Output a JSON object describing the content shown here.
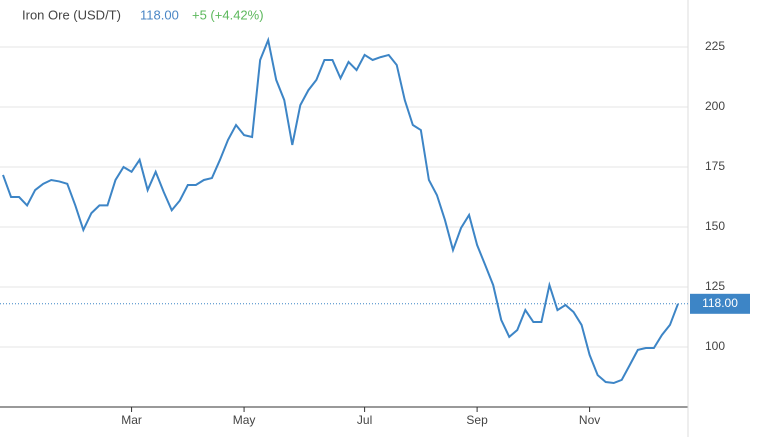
{
  "chart_data": {
    "type": "line",
    "title": "Iron Ore (USD/T)",
    "price": "118.00",
    "change": "+5 (+4.42%)",
    "color": "#3d85c6",
    "price_color": "#4a86c5",
    "change_color": "#5cb85c",
    "grid": true,
    "categories": [
      null,
      null,
      null,
      null,
      null,
      null,
      null,
      null,
      null,
      null,
      null,
      null,
      null,
      null,
      null,
      null,
      "Mar",
      null,
      null,
      null,
      null,
      null,
      null,
      null,
      null,
      null,
      null,
      null,
      null,
      null,
      "May",
      null,
      null,
      null,
      null,
      null,
      null,
      null,
      null,
      null,
      null,
      null,
      null,
      null,
      null,
      "Jul",
      null,
      null,
      null,
      null,
      null,
      null,
      null,
      null,
      null,
      null,
      null,
      null,
      null,
      "Sep",
      null,
      null,
      null,
      null,
      null,
      null,
      null,
      null,
      null,
      null,
      null,
      null,
      null,
      "Nov",
      null,
      null,
      null,
      null,
      null,
      null,
      null,
      null,
      null,
      null,
      null
    ],
    "values": [
      171.7,
      162.5,
      162.5,
      159,
      165.4,
      168,
      169.6,
      169,
      168,
      159,
      148.8,
      155.8,
      159,
      159,
      169.6,
      175,
      173,
      178,
      165.4,
      173,
      164.6,
      157,
      161,
      167.5,
      167.5,
      169.6,
      170.4,
      178,
      186.3,
      192.5,
      188.3,
      187.5,
      219.6,
      227.9,
      211.3,
      202.9,
      184.2,
      200.8,
      207,
      211.3,
      219.6,
      219.6,
      212,
      218.8,
      215.4,
      221.7,
      219.6,
      220.8,
      221.7,
      217.5,
      202.9,
      192.5,
      190.4,
      169.6,
      163.3,
      152.9,
      140.4,
      149.6,
      155,
      142.5,
      134.2,
      125.8,
      111.3,
      104.2,
      107.1,
      115.4,
      110.4,
      110.4,
      125.8,
      115.4,
      117.5,
      114.6,
      109.2,
      96.7,
      88.3,
      85.4,
      85,
      86.3,
      92.5,
      98.8,
      99.6,
      99.6,
      105,
      109.2,
      118
    ],
    "ylim": [
      75,
      244.6
    ],
    "yticks": [
      100,
      125,
      150,
      175,
      200,
      225
    ]
  }
}
